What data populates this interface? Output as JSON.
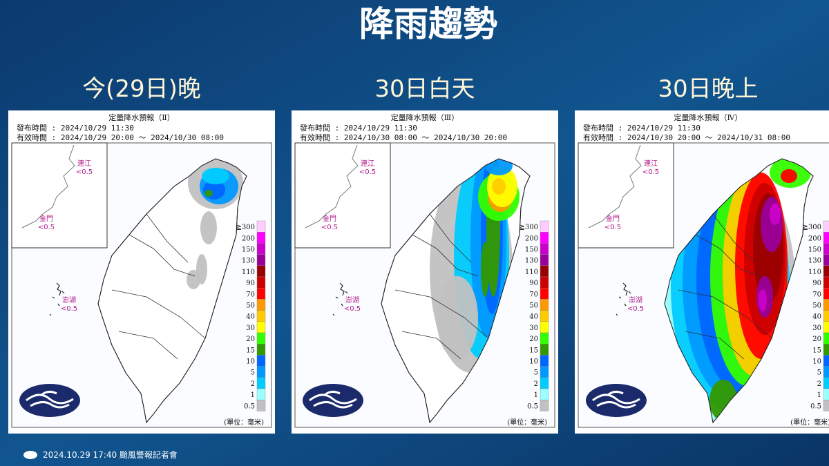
{
  "title": "降雨趨勢",
  "panels": [
    {
      "heading": "今(29日)晚",
      "map_title": "定量降水預報（Ⅱ）",
      "issued": "發布時間 : 2024/10/29 11:30",
      "valid": "有效時間 : 2024/10/29 20:00 ～ 2024/10/30 08:00",
      "insets": [
        {
          "name": "連江",
          "value": "<0.5"
        },
        {
          "name": "金門",
          "value": "<0.5"
        },
        {
          "name": "澎湖",
          "value": "<0.5"
        }
      ],
      "unit": "(單位：毫米)"
    },
    {
      "heading": "30日白天",
      "map_title": "定量降水預報（Ⅲ）",
      "issued": "發布時間 : 2024/10/29 11:30",
      "valid": "有效時間 : 2024/10/30 08:00 ～ 2024/10/30 20:00",
      "insets": [
        {
          "name": "連江",
          "value": "<0.5"
        },
        {
          "name": "金門",
          "value": "<0.5"
        },
        {
          "name": "澎湖",
          "value": "<0.5"
        }
      ],
      "unit": "(單位：毫米)"
    },
    {
      "heading": "30日晚上",
      "map_title": "定量降水預報（Ⅳ）",
      "issued": "發布時間 : 2024/10/29 11:30",
      "valid": "有效時間 : 2024/10/30 20:00 ～ 2024/10/31 08:00",
      "insets": [
        {
          "name": "連江",
          "value": "<0.5"
        },
        {
          "name": "金門",
          "value": "<0.5"
        },
        {
          "name": "澎湖",
          "value": "<0.5"
        }
      ],
      "unit": "(單位：毫米)"
    }
  ],
  "legend": {
    "labels": [
      "≧300",
      "200",
      "150",
      "130",
      "110",
      "90",
      "70",
      "50",
      "40",
      "30",
      "20",
      "15",
      "10",
      "5",
      "2",
      "1",
      "0.5"
    ],
    "colors": [
      "#ffccff",
      "#ff00ff",
      "#cc00cc",
      "#990099",
      "#990000",
      "#cc0000",
      "#ff0000",
      "#ff9900",
      "#ffcc00",
      "#ffff00",
      "#33ff00",
      "#339900",
      "#0066ff",
      "#0099ff",
      "#00ccff",
      "#99ffff",
      "#c1c1c1"
    ]
  },
  "footer": "2024.10.29  17:40 颱風警報記者會"
}
